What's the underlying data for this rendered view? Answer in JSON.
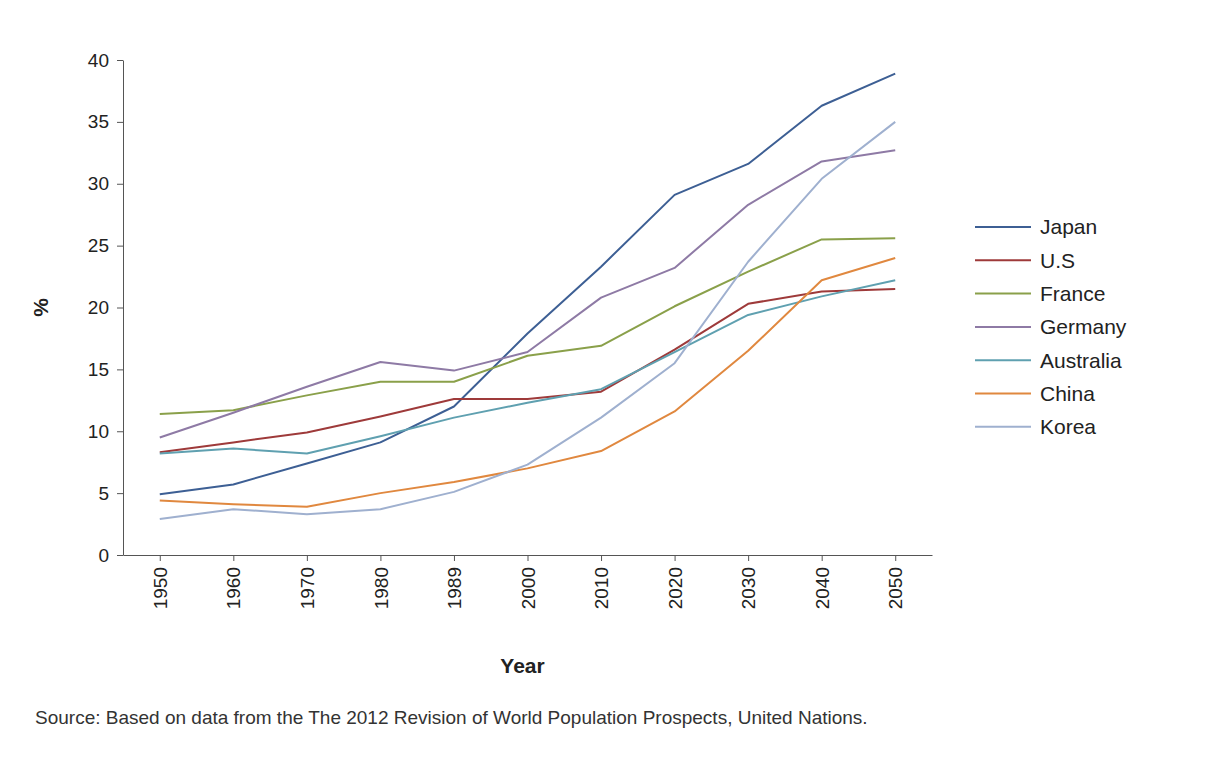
{
  "chart_data": {
    "type": "line",
    "x_label": "Year",
    "y_label": "%",
    "source": "Source: Based on data from the The 2012 Revision of World Population Prospects, United Nations.",
    "categories": [
      "1950",
      "1960",
      "1970",
      "1980",
      "1989",
      "2000",
      "2010",
      "2020",
      "2030",
      "2040",
      "2050"
    ],
    "series": [
      {
        "name": "Japan",
        "color": "#3d5f94",
        "values": [
          4.9,
          5.7,
          7.4,
          9.1,
          12.0,
          17.9,
          23.3,
          29.1,
          31.6,
          36.3,
          38.9
        ]
      },
      {
        "name": "U.S",
        "color": "#9e3a3a",
        "values": [
          8.3,
          9.1,
          9.9,
          11.2,
          12.6,
          12.6,
          13.2,
          16.6,
          20.3,
          21.3,
          21.5
        ]
      },
      {
        "name": "France",
        "color": "#8aa04a",
        "values": [
          11.4,
          11.7,
          12.9,
          14.0,
          14.0,
          16.1,
          16.9,
          20.1,
          22.9,
          25.5,
          25.6
        ]
      },
      {
        "name": "Germany",
        "color": "#8e7aa5",
        "values": [
          9.5,
          11.5,
          13.6,
          15.6,
          14.9,
          16.4,
          20.8,
          23.2,
          28.3,
          31.8,
          32.7
        ]
      },
      {
        "name": "Australia",
        "color": "#5fa0b0",
        "values": [
          8.2,
          8.6,
          8.2,
          9.6,
          11.1,
          12.3,
          13.4,
          16.4,
          19.4,
          20.9,
          22.2
        ]
      },
      {
        "name": "China",
        "color": "#e0883f",
        "values": [
          4.4,
          4.1,
          3.9,
          5.0,
          5.9,
          7.0,
          8.4,
          11.6,
          16.5,
          22.2,
          24.0
        ]
      },
      {
        "name": "Korea",
        "color": "#9fb0cf",
        "values": [
          2.9,
          3.7,
          3.3,
          3.7,
          5.1,
          7.3,
          11.1,
          15.5,
          23.7,
          30.4,
          35.0
        ]
      }
    ],
    "ylim": [
      0,
      40
    ],
    "yticks": [
      0,
      5,
      10,
      15,
      20,
      25,
      30,
      35,
      40
    ],
    "grid": false,
    "legend": "right"
  }
}
